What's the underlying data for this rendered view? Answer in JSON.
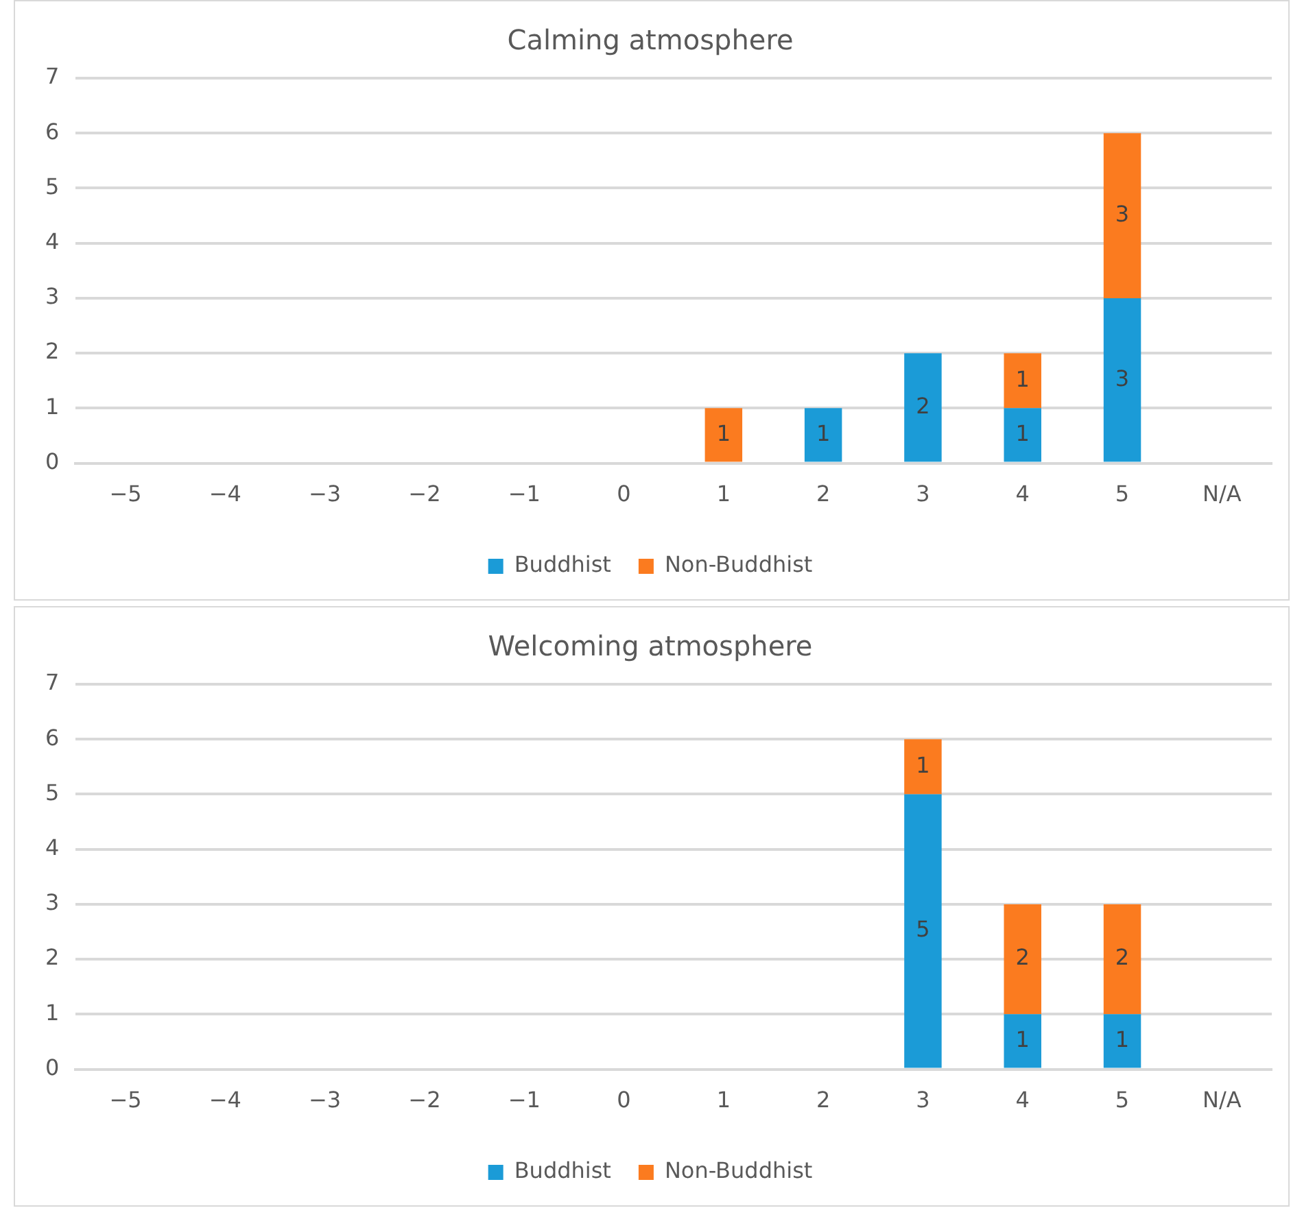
{
  "chart_data": [
    {
      "type": "bar",
      "title": "Calming atmosphere",
      "categories": [
        "−5",
        "−4",
        "−3",
        "−2",
        "−1",
        "0",
        "1",
        "2",
        "3",
        "4",
        "5",
        "N/A"
      ],
      "stacked": true,
      "series": [
        {
          "name": "Buddhist",
          "color": "#1b9bd7",
          "values": [
            null,
            null,
            null,
            null,
            null,
            null,
            null,
            1,
            2,
            1,
            3,
            null
          ]
        },
        {
          "name": "Non-Buddhist",
          "color": "#fb7b1f",
          "values": [
            null,
            null,
            null,
            null,
            null,
            null,
            1,
            null,
            null,
            1,
            3,
            null
          ]
        }
      ],
      "ylim": [
        0,
        7
      ],
      "yticks": [
        0,
        1,
        2,
        3,
        4,
        5,
        6,
        7
      ],
      "grid": "y",
      "legend": "bottom",
      "data_labels": true
    },
    {
      "type": "bar",
      "title": "Welcoming atmosphere",
      "categories": [
        "−5",
        "−4",
        "−3",
        "−2",
        "−1",
        "0",
        "1",
        "2",
        "3",
        "4",
        "5",
        "N/A"
      ],
      "stacked": true,
      "series": [
        {
          "name": "Buddhist",
          "color": "#1b9bd7",
          "values": [
            null,
            null,
            null,
            null,
            null,
            null,
            null,
            null,
            5,
            1,
            1,
            null
          ]
        },
        {
          "name": "Non-Buddhist",
          "color": "#fb7b1f",
          "values": [
            null,
            null,
            null,
            null,
            null,
            null,
            null,
            null,
            1,
            2,
            2,
            null
          ]
        }
      ],
      "ylim": [
        0,
        7
      ],
      "yticks": [
        0,
        1,
        2,
        3,
        4,
        5,
        6,
        7
      ],
      "grid": "y",
      "legend": "bottom",
      "data_labels": true
    }
  ]
}
